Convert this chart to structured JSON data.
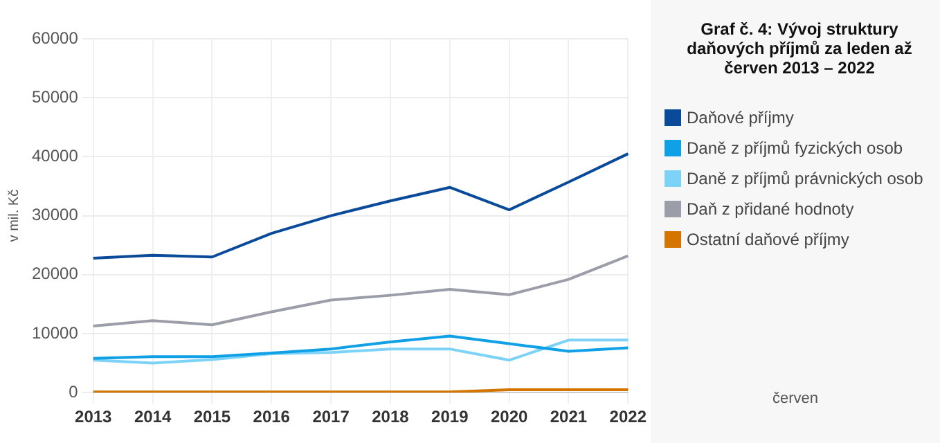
{
  "chart_data": {
    "type": "line",
    "title": "Graf č. 4: Vývoj struktury daňových příjmů za leden až červen 2013 – 2022",
    "ylabel": "v mil. Kč",
    "categories": [
      "2013",
      "2014",
      "2015",
      "2016",
      "2017",
      "2018",
      "2019",
      "2020",
      "2021",
      "2022"
    ],
    "series": [
      {
        "name": "Daňové příjmy",
        "color": "#0a4a9a",
        "values": [
          22800,
          23300,
          23000,
          27000,
          30000,
          32500,
          34800,
          31000,
          35700,
          40500
        ]
      },
      {
        "name": "Daně z příjmů fyzických osob",
        "color": "#0fa0e6",
        "values": [
          5800,
          6100,
          6100,
          6700,
          7400,
          8600,
          9600,
          8300,
          7000,
          7600
        ]
      },
      {
        "name": "Daně z příjmů právnických osob",
        "color": "#7dd3f7",
        "values": [
          5500,
          5000,
          5600,
          6600,
          6800,
          7400,
          7400,
          5500,
          8900,
          8900
        ]
      },
      {
        "name": "Daň z přidané hodnoty",
        "color": "#9b9ea8",
        "values": [
          11300,
          12200,
          11500,
          13700,
          15700,
          16500,
          17500,
          16600,
          19200,
          23200
        ]
      },
      {
        "name": "Ostatní daňové příjmy",
        "color": "#d47500",
        "values": [
          100,
          100,
          100,
          100,
          100,
          100,
          100,
          500,
          500,
          500
        ]
      }
    ],
    "ylim": [
      0,
      60000
    ],
    "yticks": [
      0,
      10000,
      20000,
      30000,
      40000,
      50000,
      60000
    ],
    "grid": true,
    "legend": "right",
    "marker": "none",
    "line_style": "solid",
    "annotations": [
      "červen"
    ]
  }
}
